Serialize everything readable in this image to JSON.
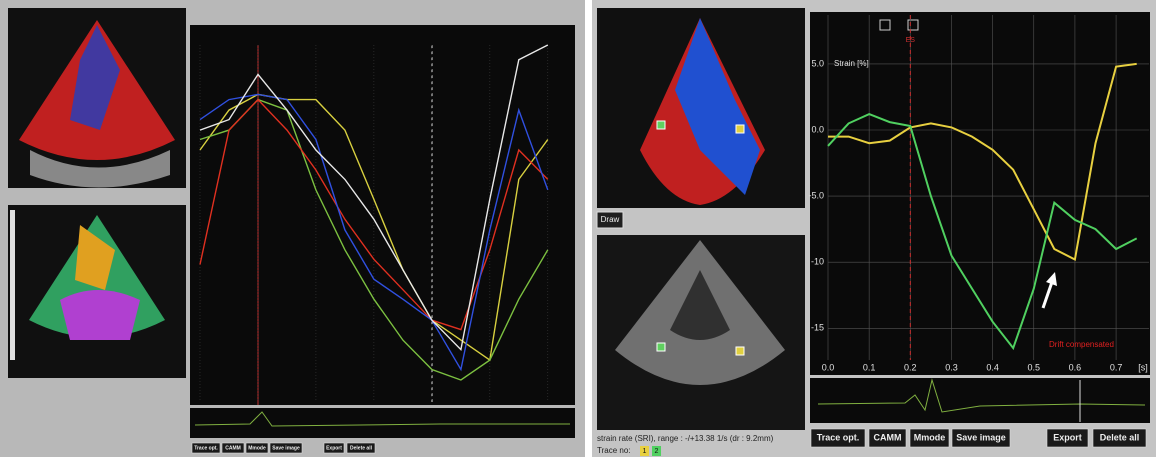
{
  "left_panel": {
    "buttons": [
      "Trace opt.",
      "CAMM",
      "Mmode",
      "Save image",
      "Export",
      "Delete all"
    ],
    "chart": {
      "type": "line",
      "x": [
        0,
        0.05,
        0.1,
        0.15,
        0.2,
        0.25,
        0.3,
        0.35,
        0.4,
        0.45,
        0.5,
        0.55,
        0.6
      ],
      "xlim": [
        0,
        0.64
      ],
      "ylim": [
        -28.6,
        5.2
      ],
      "series": [
        {
          "color": "#d8d040",
          "values": [
            -4.8,
            -1,
            0.5,
            0,
            0,
            -2.9,
            -9.5,
            -16.2,
            -21,
            -22.9,
            -24.8,
            -7.6,
            -3.8
          ]
        },
        {
          "color": "#7cc040",
          "values": [
            -3.8,
            -2.9,
            0,
            -1,
            -8.6,
            -14.3,
            -19,
            -22.9,
            -25.7,
            -26.7,
            -24.8,
            -19,
            -14.3
          ]
        },
        {
          "color": "#e03020",
          "values": [
            -15.7,
            -2.9,
            0,
            -2.9,
            -6.7,
            -11.4,
            -15.2,
            -18.1,
            -21,
            -21.9,
            -14.3,
            -4.8,
            -7.6
          ]
        },
        {
          "color": "#3050e0",
          "values": [
            -1.9,
            0,
            0.5,
            0,
            -3.8,
            -12.4,
            -17.1,
            -19,
            -21,
            -25.7,
            -12.4,
            -1,
            -8.6
          ]
        },
        {
          "color": "#e8e8e8",
          "values": [
            -2.9,
            -1.9,
            2.4,
            -1,
            -4.8,
            -7.6,
            -11.4,
            -16.2,
            -21,
            -23.8,
            -9.5,
            3.8,
            5.2
          ]
        }
      ]
    }
  },
  "right_panel": {
    "draw_button": "Draw",
    "info_text": "strain rate (SRI), range : -/+13.38 1/s (dr : 9.2mm)",
    "trace_label": "Trace no:",
    "trace_numbers": [
      "1",
      "2"
    ],
    "buttons": [
      "Trace opt.",
      "CAMM",
      "Mmode",
      "Save image",
      "Export",
      "Delete all"
    ],
    "chart": {
      "type": "line",
      "y_label": "Strain [%]",
      "x_unit": "[s]",
      "annotation": "Drift compensated",
      "marker": {
        "value": 0.2,
        "label": "ES"
      },
      "x": [
        0,
        0.05,
        0.1,
        0.15,
        0.2,
        0.25,
        0.3,
        0.35,
        0.4,
        0.45,
        0.5,
        0.55,
        0.6,
        0.65,
        0.7,
        0.75
      ],
      "xlim": [
        0,
        0.78
      ],
      "ylim": [
        -17.4,
        8.7
      ],
      "xticks": [
        {
          "value": 0,
          "label": "0.0"
        },
        0.1,
        0.2,
        0.3,
        0.4,
        0.5,
        0.6,
        0.7
      ],
      "yticks": [
        {
          "value": 5,
          "label": "5.0"
        },
        {
          "value": 0,
          "label": "0.0"
        },
        {
          "value": -5,
          "label": "-5.0"
        },
        -10,
        -15
      ],
      "series": [
        {
          "color": "#e8d040",
          "values": [
            -0.5,
            -0.5,
            -1,
            -0.8,
            0.2,
            0.5,
            0.2,
            -0.5,
            -1.5,
            -3,
            -6,
            -9,
            -9.8,
            -1,
            4.8,
            5
          ]
        },
        {
          "color": "#50d060",
          "values": [
            -1.2,
            0.5,
            1.2,
            0.6,
            0.3,
            -5,
            -9.5,
            -12,
            -14.5,
            -16.5,
            -12,
            -5.5,
            -6.8,
            -7.5,
            -9,
            -8.2
          ]
        }
      ]
    }
  }
}
